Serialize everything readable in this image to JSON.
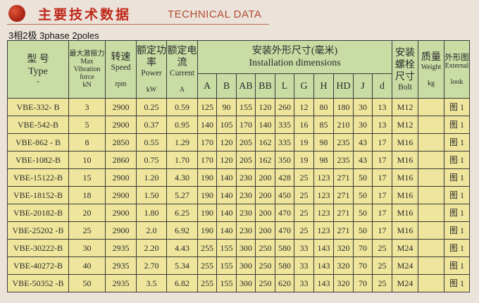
{
  "header": {
    "title_cn": "主要技术数据",
    "title_en": "TECHNICAL DATA",
    "subtitle": "3相2极  3phase 2poles"
  },
  "colors": {
    "header_bg": "#c9dca4",
    "cell_bg": "#efe59c",
    "title_red": "#c0281a"
  },
  "columns": {
    "type": {
      "cn": "型 号",
      "en": "Type",
      "sub": "-"
    },
    "force": {
      "cn": "最大激振力",
      "en": "Max Vibration force",
      "unit": "kN"
    },
    "speed": {
      "cn": "转速",
      "en": "Speed",
      "unit": "rpm"
    },
    "power": {
      "cn": "额定功率",
      "en": "Power",
      "unit": "kW"
    },
    "current": {
      "cn": "额定电流",
      "en": "Current",
      "unit": "A"
    },
    "dims": {
      "cn": "安装外形尺寸(毫米)",
      "en": "Installation dimensions",
      "sub": [
        "A",
        "B",
        "AB",
        "BB",
        "L",
        "G",
        "H",
        "HD",
        "J",
        "d"
      ]
    },
    "bolt": {
      "cn": "安装螺栓尺寸",
      "en": "Bolt"
    },
    "weight": {
      "cn": "质量",
      "en": "Weight",
      "unit": "kg"
    },
    "look": {
      "cn": "外形图",
      "en": "External",
      "sub": "look"
    }
  },
  "rows": [
    [
      "VBE-332- B",
      "3",
      "2900",
      "0.25",
      "0.59",
      "125",
      "90",
      "155",
      "120",
      "260",
      "12",
      "80",
      "180",
      "30",
      "13",
      "M12",
      "",
      "图 1"
    ],
    [
      "VBE-542-B",
      "5",
      "2900",
      "0.37",
      "0.95",
      "140",
      "105",
      "170",
      "140",
      "335",
      "16",
      "85",
      "210",
      "30",
      "13",
      "M12",
      "",
      "图 1"
    ],
    [
      "VBE-862 - B",
      "8",
      "2850",
      "0.55",
      "1.29",
      "170",
      "120",
      "205",
      "162",
      "335",
      "19",
      "98",
      "235",
      "43",
      "17",
      "M16",
      "",
      "图 1"
    ],
    [
      "VBE-1082-B",
      "10",
      "2860",
      "0.75",
      "1.70",
      "170",
      "120",
      "205",
      "162",
      "350",
      "19",
      "98",
      "235",
      "43",
      "17",
      "M16",
      "",
      "图 1"
    ],
    [
      "VBE-15122-B",
      "15",
      "2900",
      "1.20",
      "4.30",
      "190",
      "140",
      "230",
      "200",
      "428",
      "25",
      "123",
      "271",
      "50",
      "17",
      "M16",
      "",
      "图 1"
    ],
    [
      "VBE-18152-B",
      "18",
      "2900",
      "1.50",
      "5.27",
      "190",
      "140",
      "230",
      "200",
      "450",
      "25",
      "123",
      "271",
      "50",
      "17",
      "M16",
      "",
      "图 1"
    ],
    [
      "VBE-20182-B",
      "20",
      "2900",
      "1.80",
      "6.25",
      "190",
      "140",
      "230",
      "200",
      "470",
      "25",
      "123",
      "271",
      "50",
      "17",
      "M16",
      "",
      "图 1"
    ],
    [
      "VBE-25202 -B",
      "25",
      "2900",
      "2.0",
      "6.92",
      "190",
      "140",
      "230",
      "200",
      "470",
      "25",
      "123",
      "271",
      "50",
      "17",
      "M16",
      "",
      "图 1"
    ],
    [
      "VBE-30222-B",
      "30",
      "2935",
      "2.20",
      "4.43",
      "255",
      "155",
      "300",
      "250",
      "580",
      "33",
      "143",
      "320",
      "70",
      "25",
      "M24",
      "",
      "图 1"
    ],
    [
      "VBE-40272-B",
      "40",
      "2935",
      "2.70",
      "5.34",
      "255",
      "155",
      "300",
      "250",
      "580",
      "33",
      "143",
      "320",
      "70",
      "25",
      "M24",
      "",
      "图 1"
    ],
    [
      "VBE-50352 -B",
      "50",
      "2935",
      "3.5",
      "6.82",
      "255",
      "155",
      "300",
      "250",
      "620",
      "33",
      "143",
      "320",
      "70",
      "25",
      "M24",
      "",
      "图 1"
    ]
  ]
}
